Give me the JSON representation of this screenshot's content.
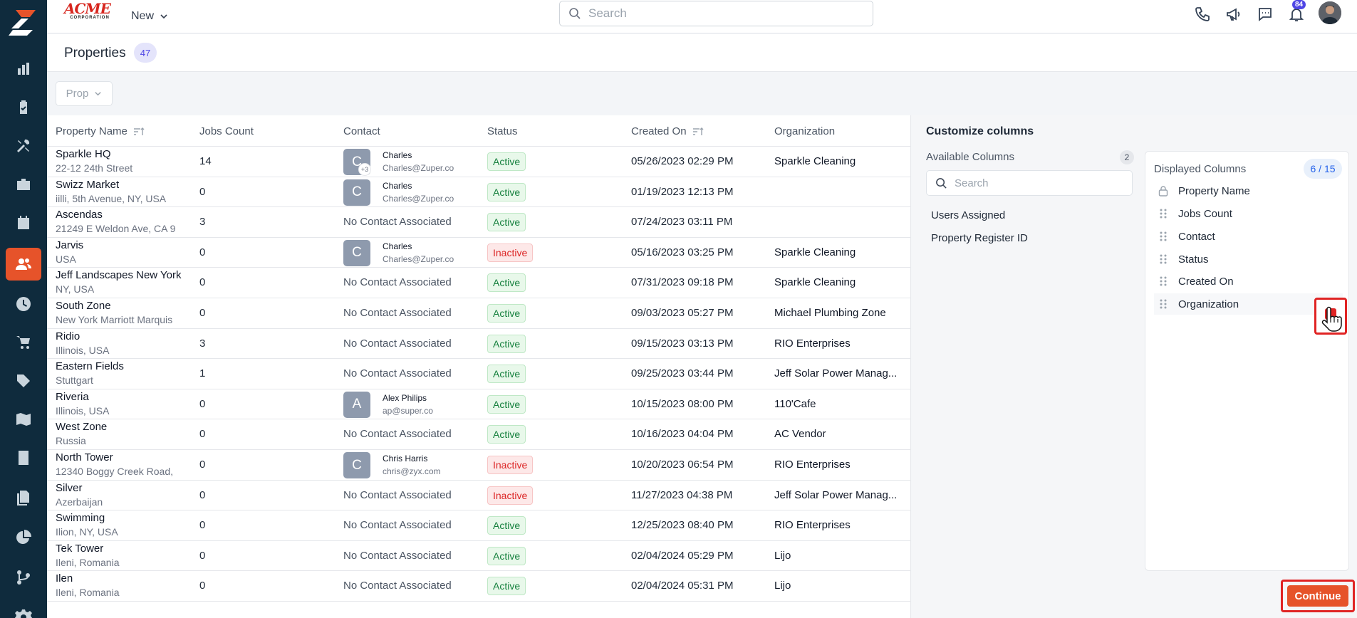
{
  "topbar": {
    "brand_name": "ACME",
    "brand_sub": "CORPORATION",
    "new_label": "New",
    "search_placeholder": "Search",
    "notification_count": "84"
  },
  "header": {
    "title": "Properties",
    "count": "47"
  },
  "filter": {
    "label": "Prop"
  },
  "table": {
    "columns": [
      "Property Name",
      "Jobs Count",
      "Contact",
      "Status",
      "Created On",
      "Organization"
    ],
    "rows": [
      {
        "name": "Sparkle HQ",
        "address": "22-12 24th Street",
        "jobs": "14",
        "contact": {
          "initial": "C",
          "name": "Charles",
          "email": "Charles@Zuper.co",
          "extra": "+3"
        },
        "status": "Active",
        "created": "05/26/2023 02:29 PM",
        "org": "Sparkle Cleaning"
      },
      {
        "name": "Swizz Market",
        "address": "iilli, 5th Avenue, NY, USA",
        "jobs": "0",
        "contact": {
          "initial": "C",
          "name": "Charles",
          "email": "Charles@Zuper.co"
        },
        "status": "Active",
        "created": "01/19/2023 12:13 PM",
        "org": ""
      },
      {
        "name": "Ascendas",
        "address": "21249 E Weldon Ave, CA 9",
        "jobs": "3",
        "contact": null,
        "status": "Active",
        "created": "07/24/2023 03:11 PM",
        "org": ""
      },
      {
        "name": "Jarvis",
        "address": "USA",
        "jobs": "0",
        "contact": {
          "initial": "C",
          "name": "Charles",
          "email": "Charles@Zuper.co"
        },
        "status": "Inactive",
        "created": "05/16/2023 03:25 PM",
        "org": "Sparkle Cleaning"
      },
      {
        "name": "Jeff Landscapes New York",
        "address": "NY, USA",
        "jobs": "0",
        "contact": null,
        "status": "Active",
        "created": "07/31/2023 09:18 PM",
        "org": "Sparkle Cleaning"
      },
      {
        "name": "South Zone",
        "address": "New York Marriott Marquis",
        "jobs": "0",
        "contact": null,
        "status": "Active",
        "created": "09/03/2023 05:27 PM",
        "org": "Michael Plumbing Zone"
      },
      {
        "name": "Ridio",
        "address": "Illinois, USA",
        "jobs": "3",
        "contact": null,
        "status": "Active",
        "created": "09/15/2023 03:13 PM",
        "org": "RIO Enterprises"
      },
      {
        "name": "Eastern Fields",
        "address": "Stuttgart",
        "jobs": "1",
        "contact": null,
        "status": "Active",
        "created": "09/25/2023 03:44 PM",
        "org": "Jeff Solar Power Manag..."
      },
      {
        "name": "Riveria",
        "address": "Illinois, USA",
        "jobs": "0",
        "contact": {
          "initial": "A",
          "name": "Alex Philips",
          "email": "ap@super.co"
        },
        "status": "Active",
        "created": "10/15/2023 08:00 PM",
        "org": "110'Cafe"
      },
      {
        "name": "West Zone",
        "address": "Russia",
        "jobs": "0",
        "contact": null,
        "status": "Active",
        "created": "10/16/2023 04:04 PM",
        "org": "AC Vendor"
      },
      {
        "name": "North Tower",
        "address": "12340 Boggy Creek Road,",
        "jobs": "0",
        "contact": {
          "initial": "C",
          "name": "Chris Harris",
          "email": "chris@zyx.com"
        },
        "status": "Inactive",
        "created": "10/20/2023 06:54 PM",
        "org": "RIO Enterprises"
      },
      {
        "name": "Silver",
        "address": "Azerbaijan",
        "jobs": "0",
        "contact": null,
        "status": "Inactive",
        "created": "11/27/2023 04:38 PM",
        "org": "Jeff Solar Power Manag..."
      },
      {
        "name": "Swimming",
        "address": "Ilion, NY, USA",
        "jobs": "0",
        "contact": null,
        "status": "Active",
        "created": "12/25/2023 08:40 PM",
        "org": "RIO Enterprises"
      },
      {
        "name": "Tek Tower",
        "address": "Ileni, Romania",
        "jobs": "0",
        "contact": null,
        "status": "Active",
        "created": "02/04/2024 05:29 PM",
        "org": "Lijo"
      },
      {
        "name": "Ilen",
        "address": "Ileni, Romania",
        "jobs": "0",
        "contact": null,
        "status": "Active",
        "created": "02/04/2024 05:31 PM",
        "org": "Lijo"
      }
    ],
    "no_contact_label": "No Contact Associated"
  },
  "panel": {
    "title": "Customize columns",
    "available_title": "Available Columns",
    "available_count": "2",
    "search_placeholder": "Search",
    "available": [
      "Users Assigned",
      "Property Register ID"
    ],
    "displayed_title": "Displayed Columns",
    "displayed_count": "6 / 15",
    "displayed": [
      "Property Name",
      "Jobs Count",
      "Contact",
      "Status",
      "Created On",
      "Organization"
    ],
    "continue_label": "Continue"
  },
  "colors": {
    "accent": "#e6532a",
    "sidebar": "#0f2b3d",
    "highlight": "#e02424"
  }
}
